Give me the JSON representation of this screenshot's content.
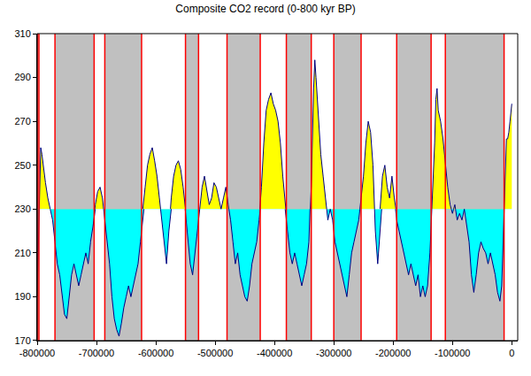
{
  "chart_data": {
    "type": "line",
    "title": "Composite CO2 record (0-800 kyr BP)",
    "color": "#000080",
    "x": [
      -800000,
      -798000,
      -796000,
      -794000,
      -792000,
      -790000,
      -786000,
      -782000,
      -778000,
      -774000,
      -770000,
      -766000,
      -762000,
      -758000,
      -754000,
      -750000,
      -746000,
      -742000,
      -738000,
      -734000,
      -730000,
      -726000,
      -722000,
      -718000,
      -714000,
      -710000,
      -706000,
      -702000,
      -698000,
      -694000,
      -690000,
      -686000,
      -682000,
      -678000,
      -674000,
      -670000,
      -666000,
      -662000,
      -658000,
      -654000,
      -650000,
      -646000,
      -642000,
      -638000,
      -634000,
      -630000,
      -626000,
      -622000,
      -618000,
      -614000,
      -610000,
      -606000,
      -602000,
      -598000,
      -594000,
      -590000,
      -586000,
      -582000,
      -578000,
      -574000,
      -570000,
      -566000,
      -562000,
      -558000,
      -554000,
      -550000,
      -546000,
      -542000,
      -538000,
      -534000,
      -530000,
      -526000,
      -522000,
      -518000,
      -514000,
      -510000,
      -506000,
      -502000,
      -498000,
      -494000,
      -490000,
      -486000,
      -482000,
      -478000,
      -474000,
      -470000,
      -466000,
      -462000,
      -458000,
      -454000,
      -450000,
      -446000,
      -442000,
      -438000,
      -434000,
      -430000,
      -426000,
      -422000,
      -418000,
      -414000,
      -410000,
      -406000,
      -402000,
      -398000,
      -394000,
      -390000,
      -386000,
      -382000,
      -378000,
      -374000,
      -370000,
      -366000,
      -362000,
      -358000,
      -354000,
      -350000,
      -346000,
      -342000,
      -338000,
      -334000,
      -332000,
      -330000,
      -326000,
      -322000,
      -318000,
      -314000,
      -310000,
      -306000,
      -302000,
      -298000,
      -294000,
      -290000,
      -286000,
      -282000,
      -278000,
      -274000,
      -270000,
      -266000,
      -262000,
      -258000,
      -254000,
      -250000,
      -246000,
      -242000,
      -238000,
      -234000,
      -230000,
      -226000,
      -222000,
      -218000,
      -214000,
      -210000,
      -206000,
      -202000,
      -198000,
      -194000,
      -190000,
      -186000,
      -182000,
      -178000,
      -174000,
      -170000,
      -166000,
      -162000,
      -158000,
      -154000,
      -150000,
      -146000,
      -142000,
      -138000,
      -134000,
      -130000,
      -128000,
      -126000,
      -124000,
      -120000,
      -116000,
      -112000,
      -108000,
      -104000,
      -100000,
      -96000,
      -92000,
      -88000,
      -84000,
      -80000,
      -76000,
      -72000,
      -68000,
      -64000,
      -60000,
      -56000,
      -52000,
      -48000,
      -44000,
      -40000,
      -36000,
      -32000,
      -28000,
      -24000,
      -20000,
      -17000,
      -15000,
      -13000,
      -11000,
      -9000,
      -7000,
      -5000,
      -3000,
      -1000,
      0
    ],
    "values": [
      190,
      210,
      235,
      258,
      255,
      250,
      242,
      235,
      230,
      225,
      215,
      205,
      200,
      190,
      182,
      180,
      190,
      200,
      205,
      200,
      195,
      200,
      205,
      210,
      205,
      215,
      222,
      232,
      238,
      240,
      235,
      225,
      215,
      205,
      190,
      180,
      175,
      172,
      178,
      185,
      190,
      195,
      190,
      195,
      200,
      205,
      215,
      230,
      240,
      250,
      255,
      258,
      252,
      245,
      235,
      225,
      215,
      205,
      220,
      235,
      245,
      250,
      252,
      248,
      240,
      228,
      215,
      205,
      200,
      210,
      220,
      230,
      240,
      245,
      238,
      232,
      235,
      242,
      240,
      235,
      230,
      235,
      240,
      232,
      225,
      215,
      205,
      210,
      200,
      195,
      190,
      188,
      195,
      205,
      210,
      215,
      225,
      240,
      260,
      275,
      280,
      283,
      278,
      275,
      270,
      260,
      245,
      230,
      220,
      210,
      205,
      210,
      205,
      200,
      195,
      200,
      205,
      215,
      240,
      285,
      298,
      290,
      270,
      255,
      245,
      235,
      225,
      230,
      225,
      215,
      210,
      205,
      200,
      195,
      190,
      200,
      210,
      215,
      220,
      225,
      235,
      245,
      260,
      270,
      265,
      250,
      220,
      205,
      230,
      245,
      250,
      240,
      235,
      245,
      235,
      225,
      220,
      215,
      210,
      205,
      200,
      205,
      200,
      195,
      200,
      190,
      195,
      190,
      195,
      210,
      235,
      260,
      280,
      285,
      275,
      270,
      262,
      250,
      240,
      232,
      228,
      232,
      225,
      228,
      225,
      230,
      222,
      215,
      200,
      192,
      200,
      210,
      215,
      212,
      210,
      205,
      210,
      205,
      200,
      192,
      188,
      195,
      210,
      230,
      245,
      262,
      262,
      265,
      270,
      275,
      278
    ],
    "threshold": {
      "value": 230,
      "above_color": "#ffff00",
      "below_color": "#00ffff"
    },
    "bands": {
      "color": "#c0c0c0",
      "edge_color": "#ff0000",
      "ranges": [
        [
          -800000,
          -797000
        ],
        [
          -770000,
          -704000
        ],
        [
          -686000,
          -624000
        ],
        [
          -550000,
          -528000
        ],
        [
          -480000,
          -424000
        ],
        [
          -380000,
          -338000
        ],
        [
          -300000,
          -254000
        ],
        [
          -194000,
          -136000
        ],
        [
          -112000,
          -13000
        ]
      ]
    },
    "xlim": [
      -800000,
      10000
    ],
    "xticks": [
      -800000,
      -700000,
      -600000,
      -500000,
      -400000,
      -300000,
      -200000,
      -100000,
      0
    ],
    "ylim": [
      170,
      310
    ],
    "yticks": [
      170,
      190,
      210,
      230,
      250,
      270,
      290,
      310
    ]
  }
}
